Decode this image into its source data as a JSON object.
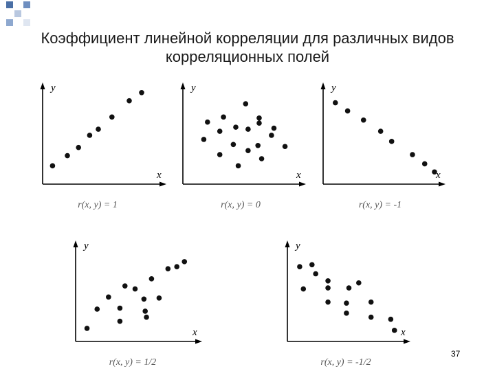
{
  "title": {
    "line1": "Коэффициент линейной корреляции для различных видов",
    "line2": "корреляционных полей"
  },
  "panels": [
    {
      "y_label": "y",
      "x_label": "x",
      "caption": "r(x, y) = 1",
      "points": [
        [
          0.08,
          0.82
        ],
        [
          0.2,
          0.72
        ],
        [
          0.29,
          0.64
        ],
        [
          0.38,
          0.52
        ],
        [
          0.45,
          0.46
        ],
        [
          0.56,
          0.34
        ],
        [
          0.7,
          0.18
        ],
        [
          0.8,
          0.1
        ]
      ]
    },
    {
      "y_label": "y",
      "x_label": "x",
      "caption": "r(x, y) = 0",
      "points": [
        [
          0.2,
          0.39
        ],
        [
          0.33,
          0.34
        ],
        [
          0.51,
          0.21
        ],
        [
          0.62,
          0.35
        ],
        [
          0.74,
          0.45
        ],
        [
          0.17,
          0.56
        ],
        [
          0.3,
          0.48
        ],
        [
          0.43,
          0.44
        ],
        [
          0.53,
          0.46
        ],
        [
          0.62,
          0.4
        ],
        [
          0.72,
          0.52
        ],
        [
          0.41,
          0.61
        ],
        [
          0.53,
          0.67
        ],
        [
          0.61,
          0.62
        ],
        [
          0.83,
          0.63
        ],
        [
          0.3,
          0.71
        ],
        [
          0.45,
          0.82
        ],
        [
          0.64,
          0.75
        ]
      ]
    },
    {
      "y_label": "y",
      "x_label": "x",
      "caption": "r(x, y) = -1",
      "points": [
        [
          0.1,
          0.2
        ],
        [
          0.2,
          0.28
        ],
        [
          0.33,
          0.37
        ],
        [
          0.47,
          0.48
        ],
        [
          0.56,
          0.58
        ],
        [
          0.73,
          0.71
        ],
        [
          0.83,
          0.8
        ],
        [
          0.91,
          0.88
        ]
      ]
    },
    {
      "y_label": "y",
      "x_label": "x",
      "caption": "r(x, y) = 1/2",
      "points": [
        [
          0.09,
          0.87
        ],
        [
          0.17,
          0.68
        ],
        [
          0.26,
          0.56
        ],
        [
          0.35,
          0.67
        ],
        [
          0.35,
          0.8
        ],
        [
          0.39,
          0.45
        ],
        [
          0.47,
          0.48
        ],
        [
          0.54,
          0.58
        ],
        [
          0.55,
          0.7
        ],
        [
          0.56,
          0.76
        ],
        [
          0.6,
          0.38
        ],
        [
          0.66,
          0.57
        ],
        [
          0.73,
          0.28
        ],
        [
          0.8,
          0.26
        ],
        [
          0.86,
          0.21
        ]
      ]
    },
    {
      "y_label": "y",
      "x_label": "x",
      "caption": "r(x, y) = -1/2",
      "points": [
        [
          0.1,
          0.26
        ],
        [
          0.2,
          0.24
        ],
        [
          0.13,
          0.48
        ],
        [
          0.23,
          0.33
        ],
        [
          0.33,
          0.4
        ],
        [
          0.33,
          0.47
        ],
        [
          0.5,
          0.47
        ],
        [
          0.58,
          0.42
        ],
        [
          0.33,
          0.61
        ],
        [
          0.48,
          0.62
        ],
        [
          0.68,
          0.61
        ],
        [
          0.48,
          0.72
        ],
        [
          0.68,
          0.76
        ],
        [
          0.84,
          0.78
        ],
        [
          0.87,
          0.89
        ]
      ]
    }
  ],
  "page_number": "37"
}
